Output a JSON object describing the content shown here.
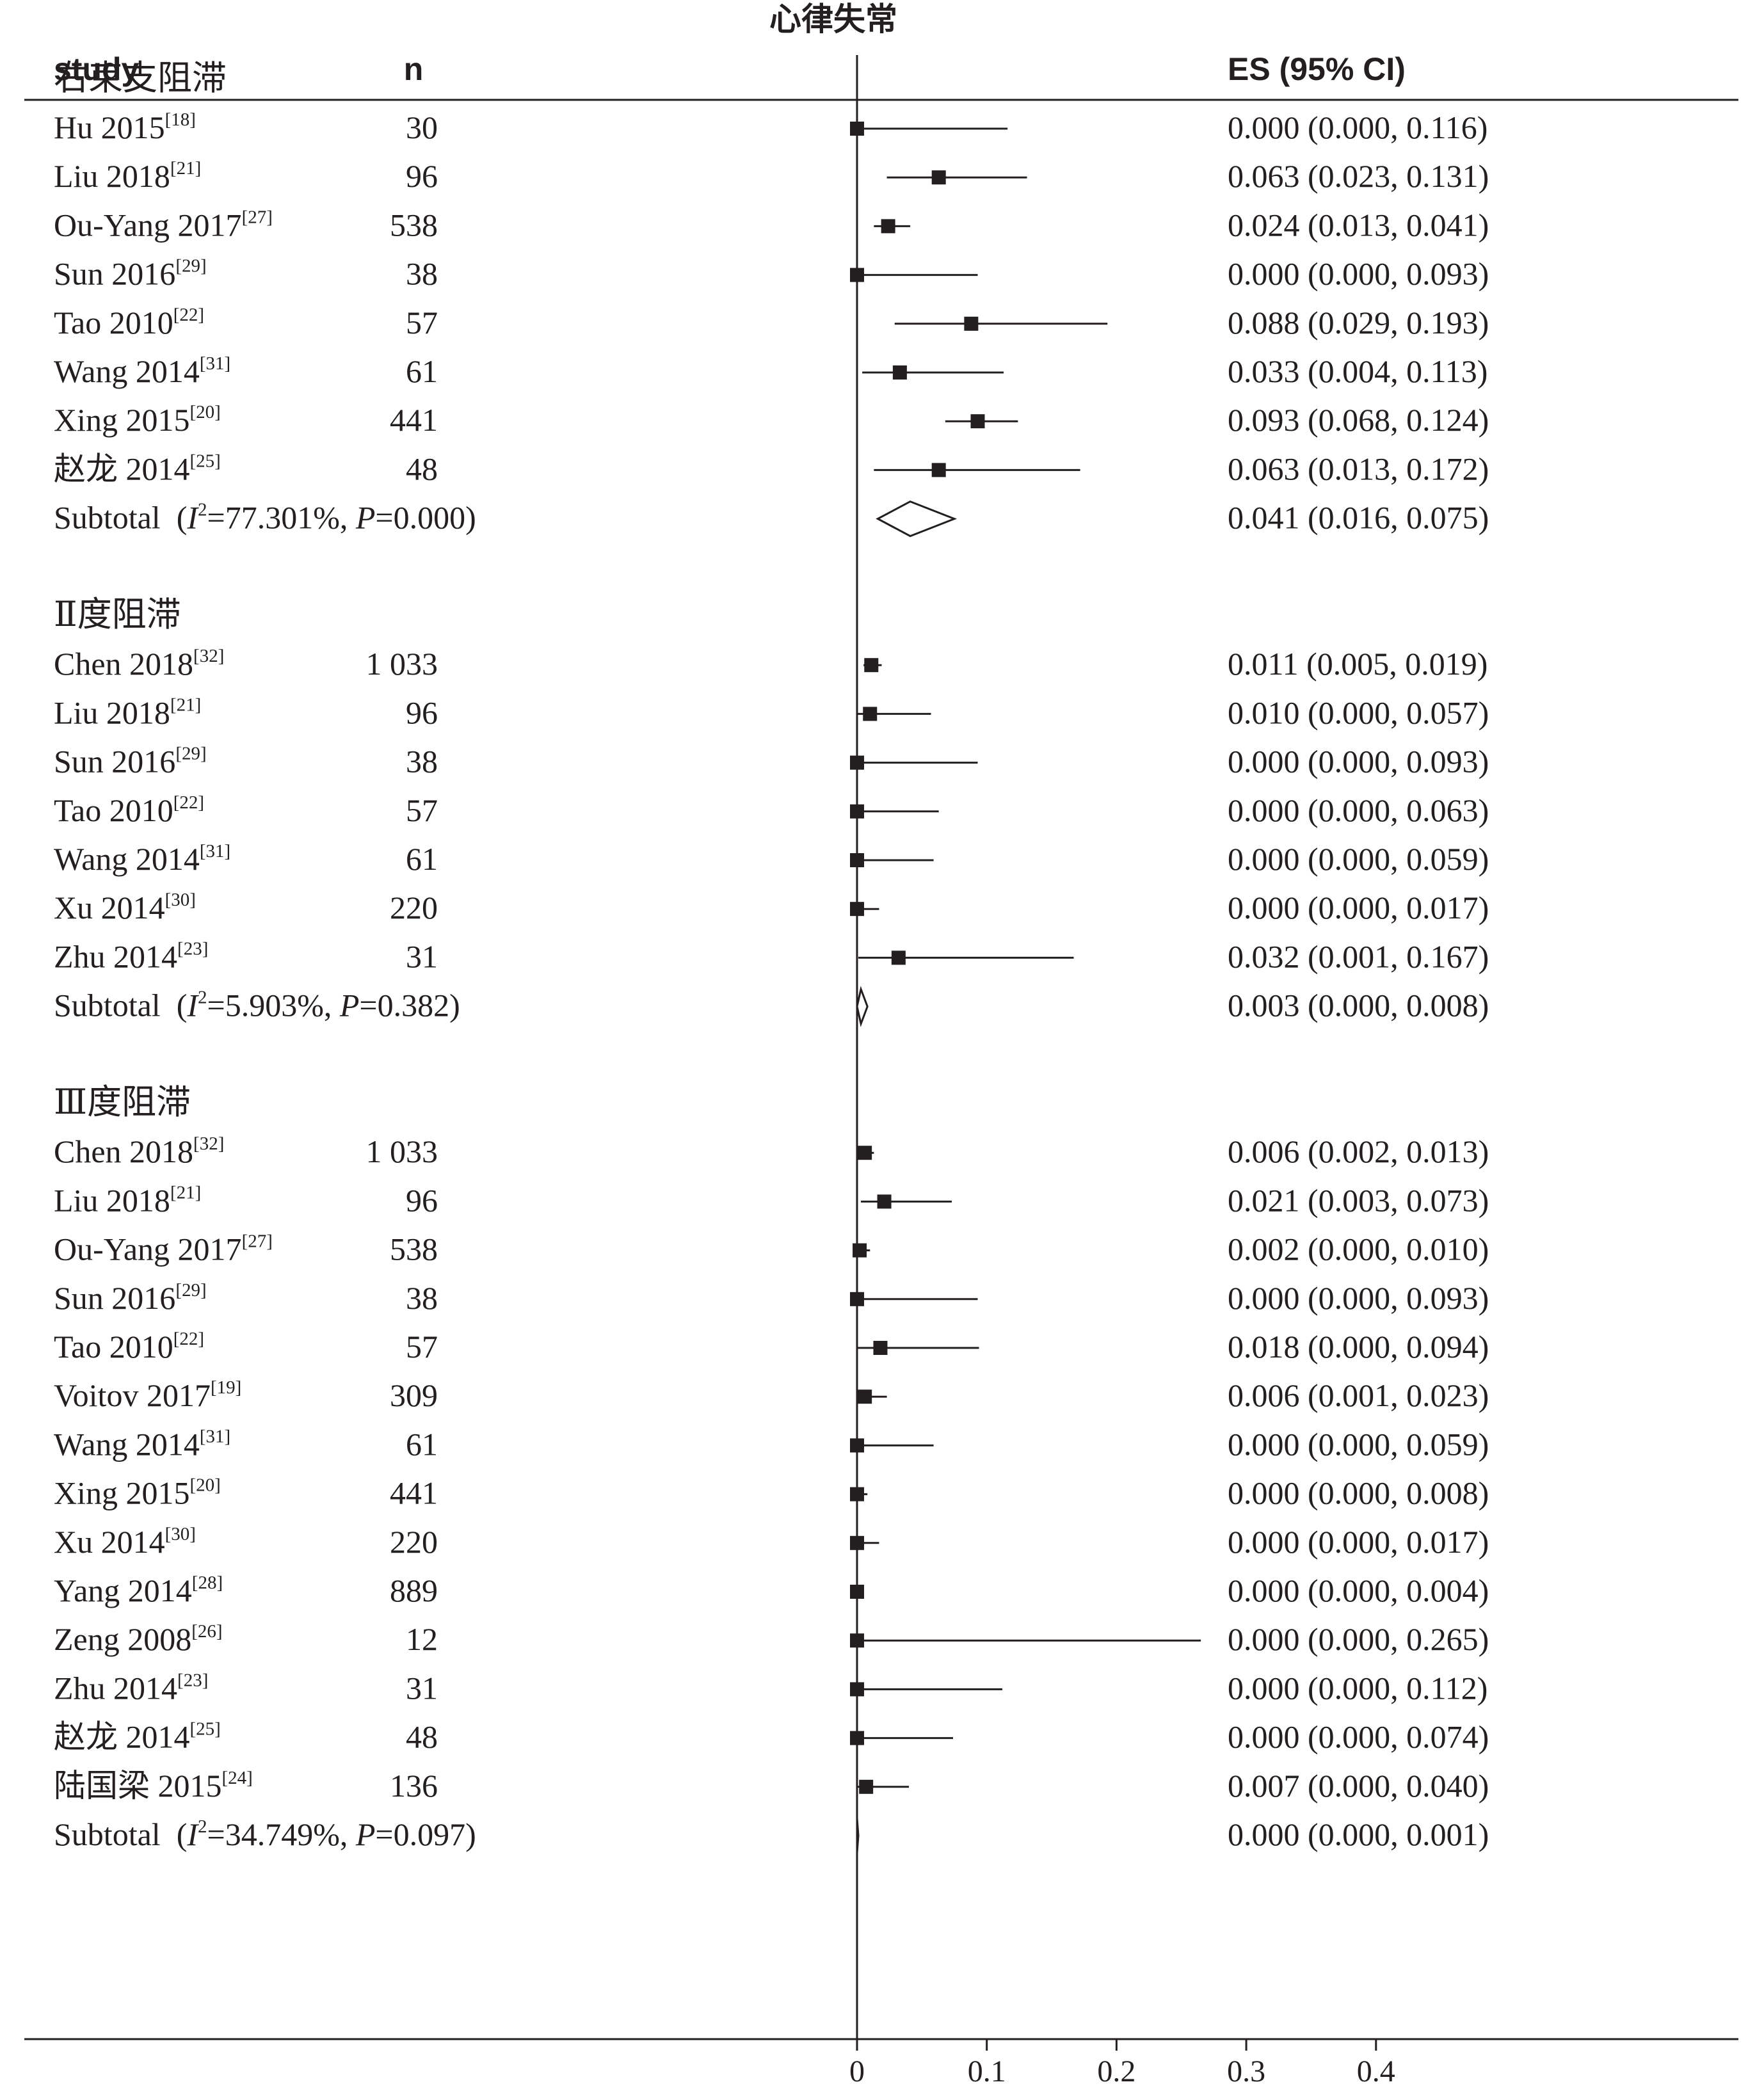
{
  "chart_data": {
    "type": "forest",
    "title": "心律失常",
    "columns": {
      "study": "study",
      "n": "n",
      "es": "ES (95% CI)"
    },
    "xlim": [
      0,
      0.4
    ],
    "x_ticks": [
      "0",
      "0.1",
      "0.2",
      "0.3",
      "0.4"
    ],
    "null_line": 0,
    "groups": [
      {
        "label": "右束支阻滞",
        "studies": [
          {
            "name": "Hu 2015",
            "ref": "[18]",
            "n": "30",
            "es": 0.0,
            "lo": 0.0,
            "hi": 0.116,
            "text": "0.000 (0.000, 0.116)"
          },
          {
            "name": "Liu 2018",
            "ref": "[21]",
            "n": "96",
            "es": 0.063,
            "lo": 0.023,
            "hi": 0.131,
            "text": "0.063 (0.023, 0.131)"
          },
          {
            "name": "Ou-Yang 2017",
            "ref": "[27]",
            "n": "538",
            "es": 0.024,
            "lo": 0.013,
            "hi": 0.041,
            "text": "0.024 (0.013, 0.041)"
          },
          {
            "name": "Sun 2016",
            "ref": "[29]",
            "n": "38",
            "es": 0.0,
            "lo": 0.0,
            "hi": 0.093,
            "text": "0.000 (0.000, 0.093)"
          },
          {
            "name": "Tao 2010",
            "ref": "[22]",
            "n": "57",
            "es": 0.088,
            "lo": 0.029,
            "hi": 0.193,
            "text": "0.088 (0.029, 0.193)"
          },
          {
            "name": "Wang 2014",
            "ref": "[31]",
            "n": "61",
            "es": 0.033,
            "lo": 0.004,
            "hi": 0.113,
            "text": "0.033 (0.004, 0.113)"
          },
          {
            "name": "Xing 2015",
            "ref": "[20]",
            "n": "441",
            "es": 0.093,
            "lo": 0.068,
            "hi": 0.124,
            "text": "0.093 (0.068, 0.124)"
          },
          {
            "name": "赵龙 2014",
            "ref": "[25]",
            "n": "48",
            "es": 0.063,
            "lo": 0.013,
            "hi": 0.172,
            "text": "0.063 (0.013, 0.172)"
          }
        ],
        "subtotal": {
          "label": "Subtotal",
          "i2": "77.301%",
          "p": "0.000",
          "es": 0.041,
          "lo": 0.016,
          "hi": 0.075,
          "text": "0.041 (0.016, 0.075)"
        }
      },
      {
        "label": "Ⅱ度阻滞",
        "studies": [
          {
            "name": "Chen 2018",
            "ref": "[32]",
            "n": "1 033",
            "es": 0.011,
            "lo": 0.005,
            "hi": 0.019,
            "text": "0.011 (0.005, 0.019)"
          },
          {
            "name": "Liu 2018",
            "ref": "[21]",
            "n": "96",
            "es": 0.01,
            "lo": 0.0,
            "hi": 0.057,
            "text": "0.010 (0.000, 0.057)"
          },
          {
            "name": "Sun 2016",
            "ref": "[29]",
            "n": "38",
            "es": 0.0,
            "lo": 0.0,
            "hi": 0.093,
            "text": "0.000 (0.000, 0.093)"
          },
          {
            "name": "Tao 2010",
            "ref": "[22]",
            "n": "57",
            "es": 0.0,
            "lo": 0.0,
            "hi": 0.063,
            "text": "0.000 (0.000, 0.063)"
          },
          {
            "name": "Wang 2014",
            "ref": "[31]",
            "n": "61",
            "es": 0.0,
            "lo": 0.0,
            "hi": 0.059,
            "text": "0.000 (0.000, 0.059)"
          },
          {
            "name": "Xu 2014",
            "ref": "[30]",
            "n": "220",
            "es": 0.0,
            "lo": 0.0,
            "hi": 0.017,
            "text": "0.000 (0.000, 0.017)"
          },
          {
            "name": "Zhu 2014",
            "ref": "[23]",
            "n": "31",
            "es": 0.032,
            "lo": 0.001,
            "hi": 0.167,
            "text": "0.032 (0.001, 0.167)"
          }
        ],
        "subtotal": {
          "label": "Subtotal",
          "i2": "5.903%",
          "p": "0.382",
          "es": 0.003,
          "lo": 0.0,
          "hi": 0.008,
          "text": "0.003 (0.000, 0.008)"
        }
      },
      {
        "label": "Ⅲ度阻滞",
        "studies": [
          {
            "name": "Chen 2018",
            "ref": "[32]",
            "n": "1 033",
            "es": 0.006,
            "lo": 0.002,
            "hi": 0.013,
            "text": "0.006 (0.002, 0.013)"
          },
          {
            "name": "Liu 2018",
            "ref": "[21]",
            "n": "96",
            "es": 0.021,
            "lo": 0.003,
            "hi": 0.073,
            "text": "0.021 (0.003, 0.073)"
          },
          {
            "name": "Ou-Yang 2017",
            "ref": "[27]",
            "n": "538",
            "es": 0.002,
            "lo": 0.0,
            "hi": 0.01,
            "text": "0.002 (0.000, 0.010)"
          },
          {
            "name": "Sun 2016",
            "ref": "[29]",
            "n": "38",
            "es": 0.0,
            "lo": 0.0,
            "hi": 0.093,
            "text": "0.000 (0.000, 0.093)"
          },
          {
            "name": "Tao 2010",
            "ref": "[22]",
            "n": "57",
            "es": 0.018,
            "lo": 0.0,
            "hi": 0.094,
            "text": "0.018 (0.000, 0.094)"
          },
          {
            "name": "Voitov 2017",
            "ref": "[19]",
            "n": "309",
            "es": 0.006,
            "lo": 0.001,
            "hi": 0.023,
            "text": "0.006 (0.001, 0.023)"
          },
          {
            "name": "Wang 2014",
            "ref": "[31]",
            "n": "61",
            "es": 0.0,
            "lo": 0.0,
            "hi": 0.059,
            "text": "0.000 (0.000, 0.059)"
          },
          {
            "name": "Xing 2015",
            "ref": "[20]",
            "n": "441",
            "es": 0.0,
            "lo": 0.0,
            "hi": 0.008,
            "text": "0.000 (0.000, 0.008)"
          },
          {
            "name": "Xu 2014",
            "ref": "[30]",
            "n": "220",
            "es": 0.0,
            "lo": 0.0,
            "hi": 0.017,
            "text": "0.000 (0.000, 0.017)"
          },
          {
            "name": "Yang 2014",
            "ref": "[28]",
            "n": "889",
            "es": 0.0,
            "lo": 0.0,
            "hi": 0.004,
            "text": "0.000 (0.000, 0.004)"
          },
          {
            "name": "Zeng 2008",
            "ref": "[26]",
            "n": "12",
            "es": 0.0,
            "lo": 0.0,
            "hi": 0.265,
            "text": "0.000 (0.000, 0.265)"
          },
          {
            "name": "Zhu 2014",
            "ref": "[23]",
            "n": "31",
            "es": 0.0,
            "lo": 0.0,
            "hi": 0.112,
            "text": "0.000 (0.000, 0.112)"
          },
          {
            "name": "赵龙 2014",
            "ref": "[25]",
            "n": "48",
            "es": 0.0,
            "lo": 0.0,
            "hi": 0.074,
            "text": "0.000 (0.000, 0.074)"
          },
          {
            "name": "陆国梁 2015",
            "ref": "[24]",
            "n": "136",
            "es": 0.007,
            "lo": 0.0,
            "hi": 0.04,
            "text": "0.007 (0.000, 0.040)"
          }
        ],
        "subtotal": {
          "label": "Subtotal",
          "i2": "34.749%",
          "p": "0.097",
          "es": 0.0,
          "lo": 0.0,
          "hi": 0.001,
          "text": "0.000 (0.000, 0.001)"
        }
      }
    ],
    "colors": {
      "ink": "#231f20",
      "background": "#ffffff"
    }
  }
}
